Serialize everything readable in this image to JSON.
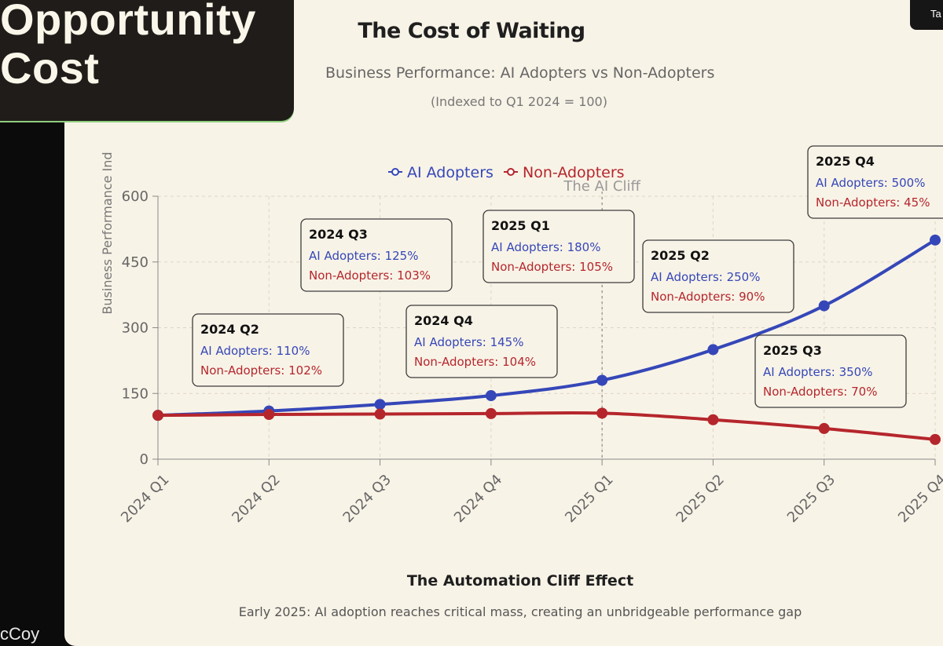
{
  "slide": {
    "heading_line1": "Opportunity",
    "heading_line2": "Cost",
    "presenter_fragment": "cCoy",
    "corner_fragment": "Ta"
  },
  "chart_data": {
    "type": "line",
    "title": "The Cost of Waiting",
    "subtitle": "Business Performance: AI Adopters vs Non-Adopters",
    "note": "(Indexed to Q1 2024 = 100)",
    "ylabel": "Business Performance Ind",
    "ylim": [
      0,
      600
    ],
    "yticks": [
      0,
      150,
      300,
      450,
      600
    ],
    "categories": [
      "2024 Q1",
      "2024 Q2",
      "2024 Q3",
      "2024 Q4",
      "2025 Q1",
      "2025 Q2",
      "2025 Q3",
      "2025 Q4"
    ],
    "series": [
      {
        "name": "AI Adopters",
        "color": "#3547b8",
        "values": [
          100,
          110,
          125,
          145,
          180,
          250,
          350,
          500
        ]
      },
      {
        "name": "Non-Adopters",
        "color": "#b5262c",
        "values": [
          100,
          102,
          103,
          104,
          105,
          90,
          70,
          45
        ]
      }
    ],
    "annotation": {
      "label": "The AI Cliff",
      "at": "2025 Q1"
    },
    "tooltips": [
      {
        "title": "2024 Q2",
        "ai": "AI Adopters: 110%",
        "non": "Non-Adopters: 102%"
      },
      {
        "title": "2024 Q3",
        "ai": "AI Adopters: 125%",
        "non": "Non-Adopters: 103%"
      },
      {
        "title": "2024 Q4",
        "ai": "AI Adopters: 145%",
        "non": "Non-Adopters: 104%"
      },
      {
        "title": "2025 Q1",
        "ai": "AI Adopters: 180%",
        "non": "Non-Adopters: 105%"
      },
      {
        "title": "2025 Q2",
        "ai": "AI Adopters: 250%",
        "non": "Non-Adopters: 90%"
      },
      {
        "title": "2025 Q3",
        "ai": "AI Adopters: 350%",
        "non": "Non-Adopters: 70%"
      },
      {
        "title": "2025 Q4",
        "ai": "AI Adopters: 500%",
        "non": "Non-Adopters: 45%"
      }
    ],
    "grid": true,
    "legend_position": "top-center"
  },
  "footer": {
    "title": "The Automation Cliff Effect",
    "subtitle": "Early 2025: AI adoption reaches critical mass, creating an unbridgeable performance gap"
  }
}
